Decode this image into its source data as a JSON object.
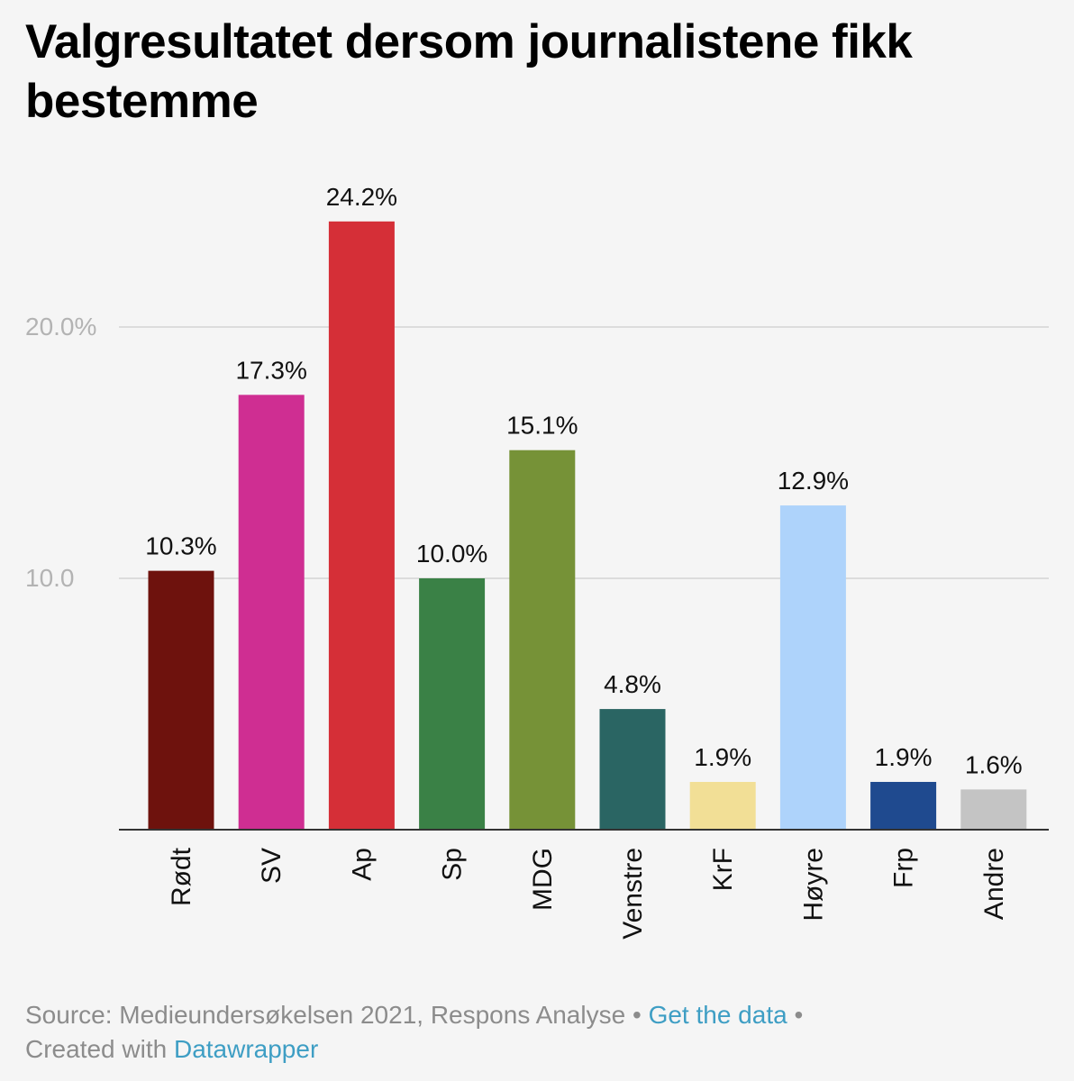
{
  "header": {
    "title": "Valgresultatet dersom journalistene fikk bestemme"
  },
  "chart_data": {
    "type": "bar",
    "title": "Valgresultatet dersom journalistene fikk bestemme",
    "xlabel": "",
    "ylabel": "",
    "ylim": [
      0,
      25
    ],
    "grid": true,
    "y_ticks": [
      {
        "value": 10,
        "label": "10.0"
      },
      {
        "value": 20,
        "label": "20.0%"
      }
    ],
    "categories": [
      "Rødt",
      "SV",
      "Ap",
      "Sp",
      "MDG",
      "Venstre",
      "KrF",
      "Høyre",
      "Frp",
      "Andre"
    ],
    "values": [
      10.3,
      17.3,
      24.2,
      10.0,
      15.1,
      4.8,
      1.9,
      12.9,
      1.9,
      1.6
    ],
    "value_labels": [
      "10.3%",
      "17.3%",
      "24.2%",
      "10.0%",
      "15.1%",
      "4.8%",
      "1.9%",
      "12.9%",
      "1.9%",
      "1.6%"
    ],
    "colors": [
      "#6e120d",
      "#cf2e92",
      "#d52f37",
      "#3a8146",
      "#769237",
      "#2a6563",
      "#f2df96",
      "#aed3fb",
      "#1f4a8f",
      "#c4c4c4"
    ]
  },
  "footer": {
    "source_text": "Source: Medieundersøkelsen 2021, Respons Analyse",
    "separator": "•",
    "get_data_link": "Get the data",
    "created_with": "Created with",
    "datawrapper_link": "Datawrapper"
  }
}
